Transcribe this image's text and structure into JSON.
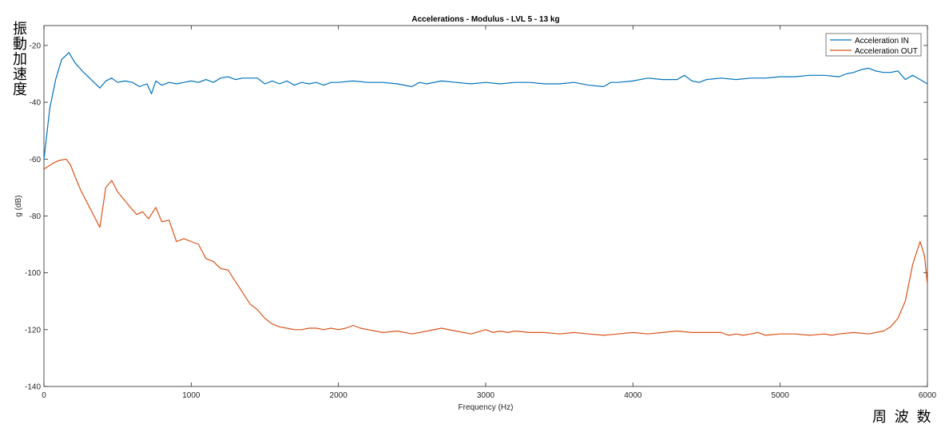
{
  "chart_data": {
    "type": "line",
    "title": "Accelerations - Modulus - LVL 5 - 13 kg",
    "xlabel": "Frequency (Hz)",
    "ylabel": "g (dB)",
    "xlim": [
      0,
      6000
    ],
    "ylim": [
      -140,
      -13
    ],
    "xticks": [
      0,
      1000,
      2000,
      3000,
      4000,
      5000,
      6000
    ],
    "yticks": [
      -140,
      -120,
      -100,
      -80,
      -60,
      -40,
      -20
    ],
    "grid": false,
    "legend_position": "top-right",
    "series": [
      {
        "name": "Acceleration IN",
        "color": "#0072bd",
        "x": [
          0,
          40,
          80,
          120,
          170,
          210,
          260,
          320,
          380,
          420,
          460,
          500,
          550,
          600,
          650,
          700,
          730,
          760,
          800,
          850,
          900,
          950,
          1000,
          1050,
          1100,
          1150,
          1200,
          1250,
          1300,
          1350,
          1400,
          1450,
          1500,
          1550,
          1600,
          1650,
          1700,
          1750,
          1800,
          1850,
          1900,
          1950,
          2000,
          2100,
          2200,
          2300,
          2400,
          2500,
          2550,
          2600,
          2700,
          2800,
          2900,
          3000,
          3100,
          3200,
          3300,
          3400,
          3500,
          3600,
          3700,
          3800,
          3850,
          3900,
          4000,
          4100,
          4200,
          4300,
          4350,
          4400,
          4450,
          4500,
          4600,
          4700,
          4800,
          4900,
          5000,
          5100,
          5200,
          5300,
          5400,
          5450,
          5500,
          5550,
          5600,
          5650,
          5700,
          5750,
          5800,
          5850,
          5900,
          5950,
          6000
        ],
        "y": [
          -60,
          -42,
          -32,
          -25,
          -22.5,
          -26,
          -29,
          -32,
          -35,
          -32.5,
          -31.5,
          -33,
          -32.5,
          -33,
          -34.5,
          -33.5,
          -37,
          -32.5,
          -34,
          -33,
          -33.5,
          -33,
          -32.5,
          -33,
          -32,
          -33,
          -31.5,
          -31,
          -32,
          -31.5,
          -31.5,
          -31.5,
          -33.5,
          -32.5,
          -33.5,
          -32.5,
          -34,
          -33,
          -33.5,
          -33,
          -34,
          -33,
          -33,
          -32.5,
          -33,
          -33,
          -33.5,
          -34.5,
          -33,
          -33.5,
          -32.5,
          -33,
          -33.5,
          -33,
          -33.5,
          -33,
          -33,
          -33.5,
          -33.5,
          -33,
          -34,
          -34.5,
          -33,
          -33,
          -32.5,
          -31.5,
          -32,
          -32,
          -30.5,
          -32.5,
          -33,
          -32,
          -31.5,
          -32,
          -31.5,
          -31.5,
          -31,
          -31,
          -30.5,
          -30.5,
          -31,
          -30,
          -29.5,
          -28.5,
          -28,
          -29,
          -29.5,
          -29.5,
          -29,
          -32,
          -30.5,
          -32,
          -33.5
        ]
      },
      {
        "name": "Acceleration OUT",
        "color": "#d95319",
        "x": [
          0,
          30,
          60,
          100,
          150,
          180,
          210,
          250,
          300,
          340,
          380,
          420,
          460,
          500,
          540,
          580,
          630,
          670,
          710,
          760,
          800,
          850,
          900,
          950,
          1000,
          1050,
          1100,
          1150,
          1200,
          1250,
          1300,
          1350,
          1400,
          1450,
          1500,
          1550,
          1600,
          1650,
          1700,
          1750,
          1800,
          1850,
          1900,
          1950,
          2000,
          2050,
          2100,
          2150,
          2200,
          2300,
          2400,
          2500,
          2600,
          2700,
          2800,
          2900,
          3000,
          3050,
          3100,
          3150,
          3200,
          3300,
          3400,
          3500,
          3600,
          3700,
          3800,
          3900,
          4000,
          4100,
          4200,
          4300,
          4400,
          4500,
          4600,
          4650,
          4700,
          4750,
          4800,
          4850,
          4900,
          5000,
          5100,
          5200,
          5300,
          5350,
          5400,
          5500,
          5600,
          5700,
          5750,
          5800,
          5850,
          5900,
          5950,
          5980,
          6000
        ],
        "y": [
          -63.5,
          -62.5,
          -61.5,
          -60.5,
          -60,
          -62,
          -66,
          -71,
          -76,
          -80,
          -84,
          -70,
          -67.5,
          -71.5,
          -74,
          -76.5,
          -79.5,
          -78.5,
          -81,
          -77,
          -82,
          -81.5,
          -89,
          -88,
          -89,
          -90,
          -95,
          -96,
          -98.5,
          -99,
          -103,
          -107,
          -111,
          -113,
          -116,
          -118,
          -119,
          -119.5,
          -120,
          -120,
          -119.5,
          -119.5,
          -120,
          -119.5,
          -120,
          -119.5,
          -118.5,
          -119.5,
          -120,
          -121,
          -120.5,
          -121.5,
          -120.5,
          -119.5,
          -120.5,
          -121.5,
          -120,
          -121,
          -120.5,
          -121,
          -120.5,
          -121,
          -121,
          -121.5,
          -121,
          -121.5,
          -122,
          -121.5,
          -121,
          -121.5,
          -121,
          -120.5,
          -121,
          -121,
          -121,
          -122,
          -121.5,
          -122,
          -121.5,
          -121,
          -122,
          -121.5,
          -121.5,
          -122,
          -121.5,
          -122,
          -121.5,
          -121,
          -121.5,
          -120.5,
          -119,
          -116,
          -110,
          -97,
          -89,
          -94,
          -104
        ]
      }
    ]
  },
  "annotations": {
    "vertical_label": "振動加速度",
    "bottom_label": "周 波 数"
  }
}
